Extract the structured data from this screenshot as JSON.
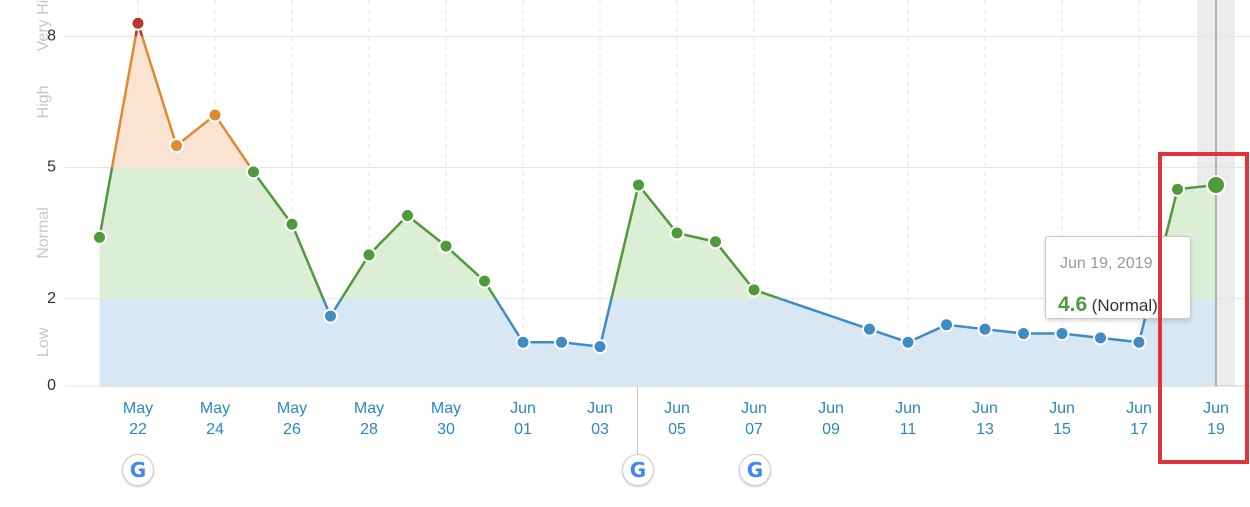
{
  "chart_data": {
    "type": "line",
    "x": [
      "May 21",
      "May 22",
      "May 23",
      "May 24",
      "May 25",
      "May 26",
      "May 27",
      "May 28",
      "May 29",
      "May 30",
      "May 31",
      "Jun 01",
      "Jun 02",
      "Jun 03",
      "Jun 04",
      "Jun 05",
      "Jun 06",
      "Jun 07",
      "Jun 10",
      "Jun 11",
      "Jun 12",
      "Jun 13",
      "Jun 14",
      "Jun 15",
      "Jun 16",
      "Jun 17",
      "Jun 18",
      "Jun 19"
    ],
    "series": [
      {
        "values": [
          3.4,
          8.3,
          5.5,
          6.2,
          4.9,
          3.7,
          1.6,
          3.0,
          3.9,
          3.2,
          2.4,
          1.0,
          1.0,
          0.9,
          4.6,
          3.5,
          3.3,
          2.2,
          1.3,
          1.0,
          1.4,
          1.3,
          1.2,
          1.2,
          1.1,
          1.0,
          4.5,
          4.6
        ]
      }
    ],
    "ylim": [
      0,
      8.9
    ],
    "yticks": [
      0,
      2,
      5,
      8
    ],
    "xticks": [
      "May 22",
      "May 24",
      "May 26",
      "May 28",
      "May 30",
      "Jun 01",
      "Jun 03",
      "Jun 05",
      "Jun 07",
      "Jun 09",
      "Jun 11",
      "Jun 13",
      "Jun 15",
      "Jun 17",
      "Jun 19"
    ],
    "bands": [
      {
        "name": "Low",
        "from": 0,
        "to": 2,
        "line": "#3f8bc4",
        "fill": "#d7e8f4"
      },
      {
        "name": "Normal",
        "from": 2,
        "to": 5,
        "line": "#4f9a3a",
        "fill": "#dcefd6"
      },
      {
        "name": "High",
        "from": 5,
        "to": 8,
        "line": "#e08a2e",
        "fill": "#fae3d3"
      },
      {
        "name": "Very High",
        "from": 8,
        "to": 8.9,
        "line": "#b5372e",
        "fill": "#f6d6d2"
      }
    ],
    "grid": true,
    "tooltip": {
      "date": "Jun 19, 2019",
      "point": 27,
      "band_label": "(Normal)"
    }
  }
}
